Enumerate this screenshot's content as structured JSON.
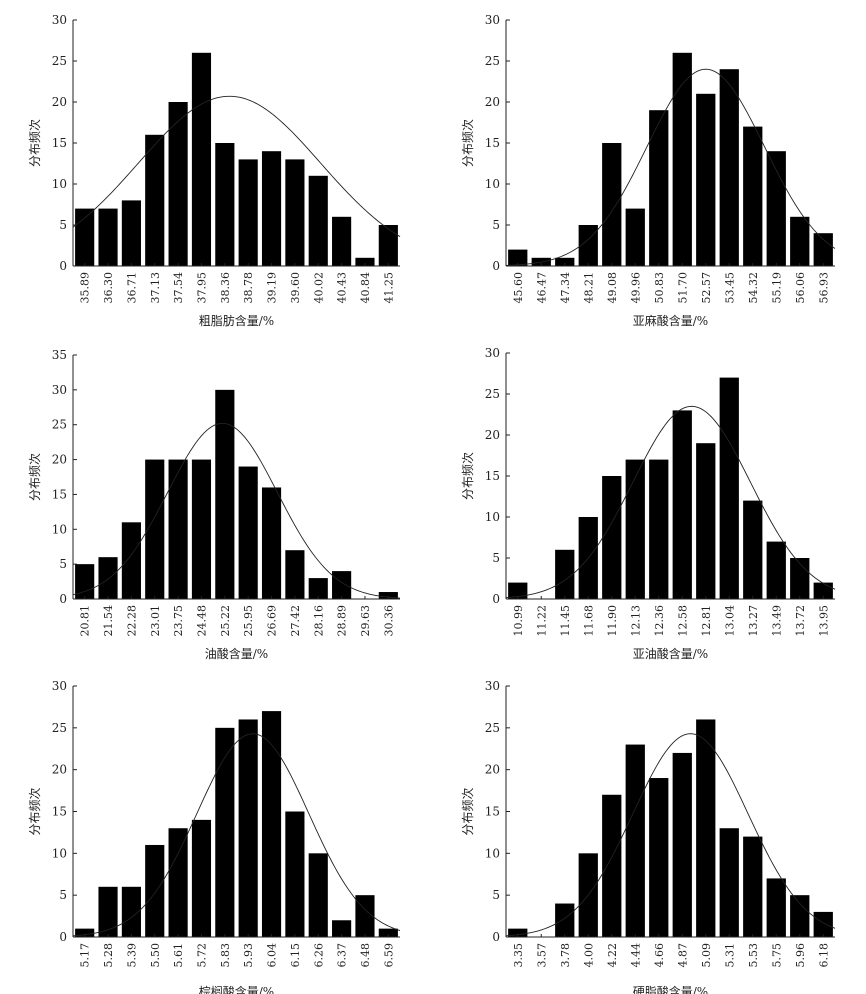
{
  "colors": {
    "bar": "#000000",
    "axis": "#222222",
    "curve": "#222222",
    "background": "#ffffff"
  },
  "chart_data": [
    {
      "type": "bar",
      "title": "",
      "xlabel": "粗脂肪含量/%",
      "ylabel": "分布频次",
      "ylim": [
        0,
        30
      ],
      "yticks": [
        0,
        5,
        10,
        15,
        20,
        25,
        30
      ],
      "categories": [
        "35.89",
        "36.30",
        "36.71",
        "37.13",
        "37.54",
        "37.95",
        "38.36",
        "38.78",
        "39.19",
        "39.60",
        "40.02",
        "40.43",
        "40.84",
        "41.25"
      ],
      "values": [
        7,
        7,
        8,
        16,
        20,
        26,
        15,
        13,
        14,
        13,
        11,
        6,
        1,
        5
      ],
      "fit_curve": {
        "type": "normal",
        "peak": 20.7,
        "peak_category_index": 6.2,
        "sd_categories": 3.9
      }
    },
    {
      "type": "bar",
      "title": "",
      "xlabel": "亚麻酸含量/%",
      "ylabel": "分布频次",
      "ylim": [
        0,
        30
      ],
      "yticks": [
        0,
        5,
        10,
        15,
        20,
        25,
        30
      ],
      "categories": [
        "45.60",
        "46.47",
        "47.34",
        "48.21",
        "49.08",
        "49.96",
        "50.83",
        "51.70",
        "52.57",
        "53.45",
        "54.32",
        "55.19",
        "56.06",
        "56.93"
      ],
      "values": [
        2,
        1,
        1,
        5,
        15,
        7,
        19,
        26,
        21,
        24,
        17,
        14,
        6,
        4
      ],
      "fit_curve": {
        "type": "normal",
        "peak": 24,
        "peak_category_index": 8.0,
        "sd_categories": 2.5
      }
    },
    {
      "type": "bar",
      "title": "",
      "xlabel": "油酸含量/%",
      "ylabel": "分布频次",
      "ylim": [
        0,
        35
      ],
      "yticks": [
        0,
        5,
        10,
        15,
        20,
        25,
        30,
        35
      ],
      "categories": [
        "20.81",
        "21.54",
        "22.28",
        "23.01",
        "23.75",
        "24.48",
        "25.22",
        "25.95",
        "26.69",
        "27.42",
        "28.16",
        "28.89",
        "29.63",
        "30.36"
      ],
      "values": [
        5,
        6,
        11,
        20,
        20,
        20,
        30,
        19,
        16,
        7,
        3,
        4,
        0,
        1
      ],
      "fit_curve": {
        "type": "normal",
        "peak": 25.2,
        "peak_category_index": 5.9,
        "sd_categories": 2.35
      }
    },
    {
      "type": "bar",
      "title": "",
      "xlabel": "亚油酸含量/%",
      "ylabel": "分布频次",
      "ylim": [
        0,
        30
      ],
      "yticks": [
        0,
        5,
        10,
        15,
        20,
        25,
        30
      ],
      "categories": [
        "10.99",
        "11.22",
        "11.45",
        "11.68",
        "11.90",
        "12.13",
        "12.36",
        "12.58",
        "12.81",
        "13.04",
        "13.27",
        "13.49",
        "13.72",
        "13.95"
      ],
      "values": [
        2,
        0,
        6,
        10,
        15,
        17,
        17,
        23,
        19,
        27,
        12,
        7,
        5,
        2
      ],
      "fit_curve": {
        "type": "normal",
        "peak": 23.5,
        "peak_category_index": 7.4,
        "sd_categories": 2.5
      }
    },
    {
      "type": "bar",
      "title": "",
      "xlabel": "棕榈酸含量/%",
      "ylabel": "分布频次",
      "ylim": [
        0,
        30
      ],
      "yticks": [
        0,
        5,
        10,
        15,
        20,
        25,
        30
      ],
      "categories": [
        "5.17",
        "5.28",
        "5.39",
        "5.50",
        "5.61",
        "5.72",
        "5.83",
        "5.93",
        "6.04",
        "6.15",
        "6.26",
        "6.37",
        "6.48",
        "6.59"
      ],
      "values": [
        1,
        6,
        6,
        11,
        13,
        14,
        25,
        26,
        27,
        15,
        10,
        2,
        5,
        1
      ],
      "fit_curve": {
        "type": "normal",
        "peak": 24.3,
        "peak_category_index": 7.2,
        "sd_categories": 2.4
      }
    },
    {
      "type": "bar",
      "title": "",
      "xlabel": "硬脂酸含量/%",
      "ylabel": "分布频次",
      "ylim": [
        0,
        30
      ],
      "yticks": [
        0,
        5,
        10,
        15,
        20,
        25,
        30
      ],
      "categories": [
        "3.35",
        "3.57",
        "3.78",
        "4.00",
        "4.22",
        "4.44",
        "4.66",
        "4.87",
        "5.09",
        "5.31",
        "5.53",
        "5.75",
        "5.96",
        "6.18"
      ],
      "values": [
        1,
        0,
        4,
        10,
        17,
        23,
        19,
        22,
        26,
        13,
        12,
        7,
        5,
        3
      ],
      "fit_curve": {
        "type": "normal",
        "peak": 24.3,
        "peak_category_index": 7.35,
        "sd_categories": 2.45
      }
    }
  ]
}
